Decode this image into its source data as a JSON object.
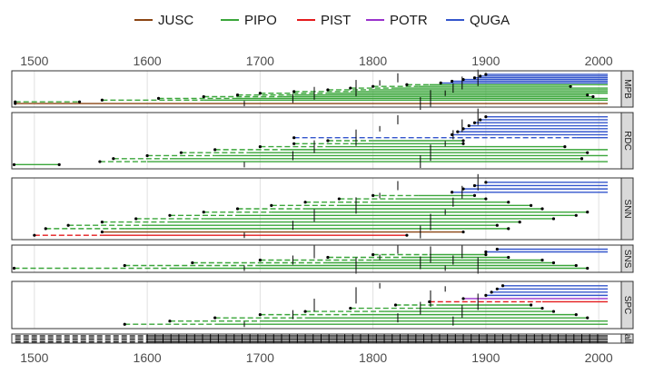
{
  "chart_data": {
    "type": "line",
    "x_axis": {
      "ticks": [
        1500,
        1600,
        1700,
        1800,
        1900,
        2000
      ],
      "range": [
        1480,
        2020
      ],
      "position": "top-and-bottom"
    },
    "legend": {
      "placement": "top",
      "entries": [
        {
          "name": "JUSC",
          "color": "#8b4513"
        },
        {
          "name": "PIPO",
          "color": "#3aa63a"
        },
        {
          "name": "PIST",
          "color": "#e41a1c"
        },
        {
          "name": "POTR",
          "color": "#9932cc"
        },
        {
          "name": "QUGA",
          "color": "#3355cc"
        }
      ]
    },
    "grid": true,
    "panels": [
      {
        "label": "MPB",
        "segments": [
          {
            "s": "JUSC",
            "from": 1483,
            "to": 2008,
            "dashed_to": null
          },
          {
            "s": "PIPO",
            "from": 1483,
            "to": 1540,
            "dashed_to": 1540,
            "end": 1540
          },
          {
            "s": "PIPO",
            "from": 1560,
            "to": 2008,
            "dashed_to": 1650
          },
          {
            "s": "PIPO",
            "from": 1610,
            "to": 2008,
            "dashed_to": 1680
          },
          {
            "s": "PIPO",
            "from": 1650,
            "to": 1995,
            "dashed_to": 1720
          },
          {
            "s": "PIPO",
            "from": 1680,
            "to": 1990,
            "dashed_to": 1730
          },
          {
            "s": "PIPO",
            "from": 1700,
            "to": 2008,
            "dashed_to": 1760
          },
          {
            "s": "PIPO",
            "from": 1730,
            "to": 2008,
            "dashed_to": 1780
          },
          {
            "s": "PIPO",
            "from": 1760,
            "to": 2008,
            "dashed_to": 1800
          },
          {
            "s": "PIPO",
            "from": 1780,
            "to": 2008,
            "dashed_to": 1820
          },
          {
            "s": "PIPO",
            "from": 1800,
            "to": 1975,
            "dashed_to": 1840
          },
          {
            "s": "PIPO",
            "from": 1830,
            "to": 2008,
            "dashed_to": 1850
          },
          {
            "s": "QUGA",
            "from": 1860,
            "to": 2008
          },
          {
            "s": "QUGA",
            "from": 1870,
            "to": 2008
          },
          {
            "s": "QUGA",
            "from": 1880,
            "to": 2008
          },
          {
            "s": "QUGA",
            "from": 1890,
            "to": 2008
          },
          {
            "s": "QUGA",
            "from": 1895,
            "to": 2008
          },
          {
            "s": "QUGA",
            "from": 1900,
            "to": 2008
          }
        ]
      },
      {
        "label": "RDC",
        "segments": [
          {
            "s": "PIPO",
            "from": 1482,
            "to": 1522
          },
          {
            "s": "PIPO",
            "from": 1558,
            "to": 2008,
            "dashed_to": 1600
          },
          {
            "s": "PIPO",
            "from": 1570,
            "to": 1985,
            "dashed_to": 1620
          },
          {
            "s": "PIPO",
            "from": 1600,
            "to": 2008,
            "dashed_to": 1660
          },
          {
            "s": "PIPO",
            "from": 1630,
            "to": 1990,
            "dashed_to": 1690
          },
          {
            "s": "PIPO",
            "from": 1660,
            "to": 2008,
            "dashed_to": 1720
          },
          {
            "s": "PIPO",
            "from": 1700,
            "to": 1970,
            "dashed_to": 1760
          },
          {
            "s": "PIPO",
            "from": 1730,
            "to": 1880,
            "dashed_to": 1780
          },
          {
            "s": "PIPO",
            "from": 1760,
            "to": 1880,
            "dashed_to": 1800
          },
          {
            "s": "QUGA",
            "from": 1730,
            "to": 2008,
            "dashed_to": 1980
          },
          {
            "s": "QUGA",
            "from": 1870,
            "to": 2008
          },
          {
            "s": "QUGA",
            "from": 1875,
            "to": 2008
          },
          {
            "s": "QUGA",
            "from": 1880,
            "to": 2008
          },
          {
            "s": "QUGA",
            "from": 1885,
            "to": 2008
          },
          {
            "s": "QUGA",
            "from": 1890,
            "to": 2008
          },
          {
            "s": "QUGA",
            "from": 1895,
            "to": 2008
          },
          {
            "s": "QUGA",
            "from": 1900,
            "to": 2008
          }
        ]
      },
      {
        "label": "SNN",
        "segments": [
          {
            "s": "PIST",
            "from": 1500,
            "to": 1830,
            "dashed_to": 1560
          },
          {
            "s": "JUSC",
            "from": 1560,
            "to": 1880
          },
          {
            "s": "PIPO",
            "from": 1510,
            "to": 1920,
            "dashed_to": 1580
          },
          {
            "s": "PIPO",
            "from": 1530,
            "to": 1910,
            "dashed_to": 1600
          },
          {
            "s": "PIPO",
            "from": 1560,
            "to": 1930,
            "dashed_to": 1620
          },
          {
            "s": "PIPO",
            "from": 1590,
            "to": 1960,
            "dashed_to": 1650
          },
          {
            "s": "PIPO",
            "from": 1620,
            "to": 1980,
            "dashed_to": 1680
          },
          {
            "s": "PIPO",
            "from": 1650,
            "to": 1990,
            "dashed_to": 1710
          },
          {
            "s": "PIPO",
            "from": 1680,
            "to": 1950,
            "dashed_to": 1740
          },
          {
            "s": "PIPO",
            "from": 1710,
            "to": 1940,
            "dashed_to": 1770
          },
          {
            "s": "PIPO",
            "from": 1740,
            "to": 1920,
            "dashed_to": 1800
          },
          {
            "s": "PIPO",
            "from": 1770,
            "to": 1900,
            "dashed_to": 1820
          },
          {
            "s": "PIPO",
            "from": 1800,
            "to": 1890,
            "dashed_to": 1840
          },
          {
            "s": "QUGA",
            "from": 1870,
            "to": 2008
          },
          {
            "s": "QUGA",
            "from": 1880,
            "to": 2008
          },
          {
            "s": "QUGA",
            "from": 1890,
            "to": 2008
          },
          {
            "s": "QUGA",
            "from": 1900,
            "to": 2008
          }
        ]
      },
      {
        "label": "SNS",
        "segments": [
          {
            "s": "PIPO",
            "from": 1482,
            "to": 1990,
            "dashed_to": 1620
          },
          {
            "s": "PIPO",
            "from": 1580,
            "to": 1980,
            "dashed_to": 1700
          },
          {
            "s": "PIPO",
            "from": 1640,
            "to": 1960,
            "dashed_to": 1760
          },
          {
            "s": "PIPO",
            "from": 1700,
            "to": 1950,
            "dashed_to": 1800
          },
          {
            "s": "PIPO",
            "from": 1760,
            "to": 1920,
            "dashed_to": 1830
          },
          {
            "s": "PIPO",
            "from": 1800,
            "to": 1900,
            "dashed_to": 1850
          },
          {
            "s": "QUGA",
            "from": 1900,
            "to": 2008
          },
          {
            "s": "QUGA",
            "from": 1910,
            "to": 2008
          }
        ]
      },
      {
        "label": "SPC",
        "segments": [
          {
            "s": "PIPO",
            "from": 1580,
            "to": 2008,
            "dashed_to": 1660
          },
          {
            "s": "PIPO",
            "from": 1620,
            "to": 2008,
            "dashed_to": 1700
          },
          {
            "s": "PIPO",
            "from": 1660,
            "to": 1990,
            "dashed_to": 1740
          },
          {
            "s": "PIPO",
            "from": 1700,
            "to": 1980,
            "dashed_to": 1780
          },
          {
            "s": "PIPO",
            "from": 1740,
            "to": 1960,
            "dashed_to": 1810
          },
          {
            "s": "PIPO",
            "from": 1780,
            "to": 1950,
            "dashed_to": 1840
          },
          {
            "s": "PIPO",
            "from": 1820,
            "to": 1940,
            "dashed_to": 1860
          },
          {
            "s": "PIST",
            "from": 1850,
            "to": 2008,
            "dashed_to": 1950
          },
          {
            "s": "POTR",
            "from": 1880,
            "to": 2008
          },
          {
            "s": "QUGA",
            "from": 1900,
            "to": 2008
          },
          {
            "s": "QUGA",
            "from": 1905,
            "to": 2008
          },
          {
            "s": "QUGA",
            "from": 1910,
            "to": 2008
          },
          {
            "s": "QUGA",
            "from": 1915,
            "to": 2008
          }
        ]
      },
      {
        "label": "all",
        "segments": []
      }
    ]
  }
}
